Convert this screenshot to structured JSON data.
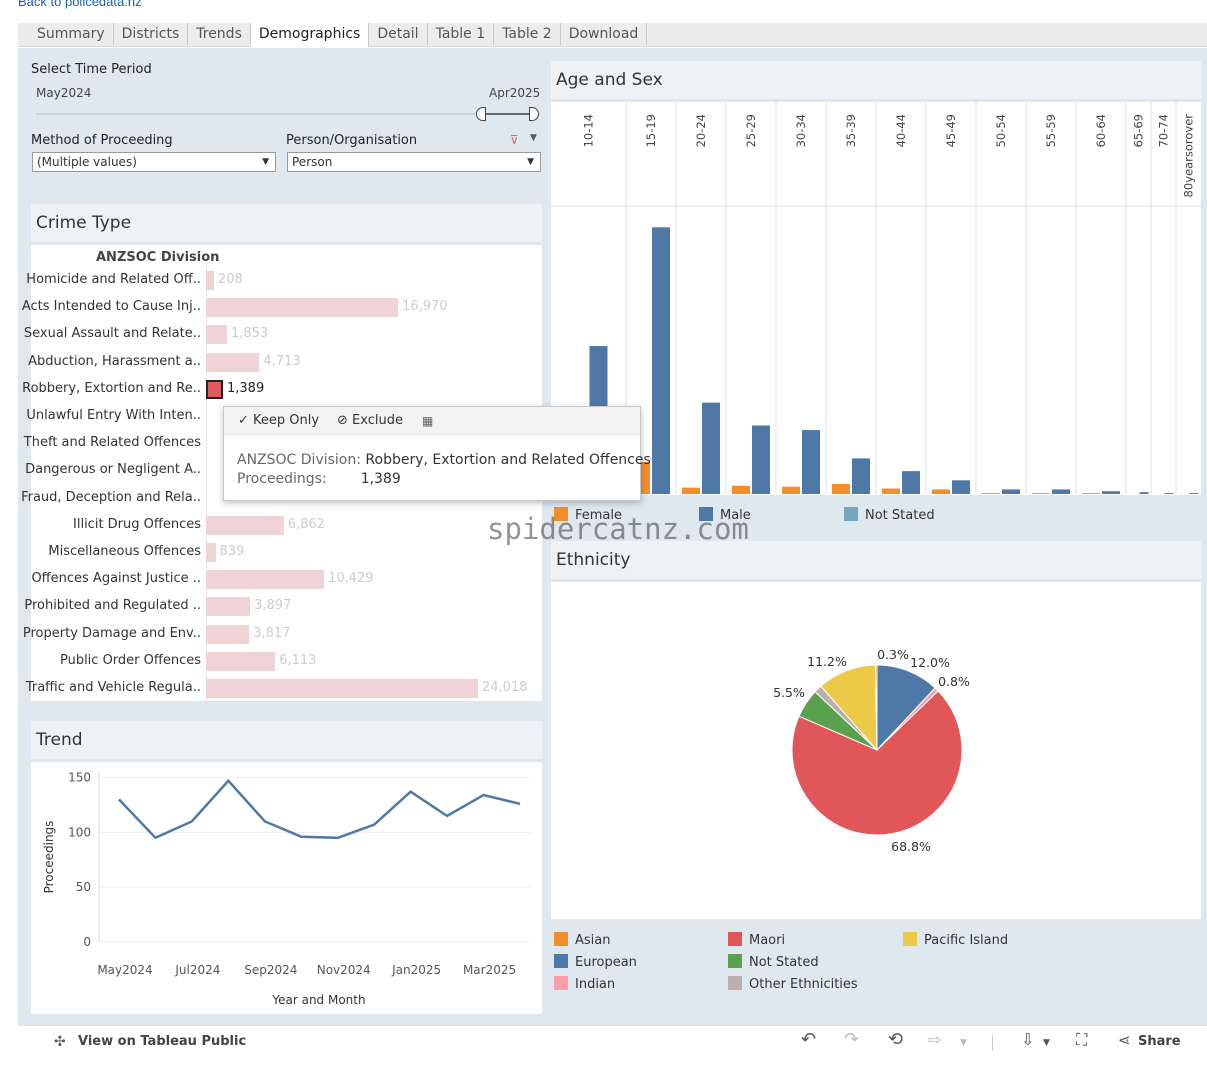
{
  "header": {
    "back_link": "Back to policedata.nz"
  },
  "tabs": [
    "Summary",
    "Districts",
    "Trends",
    "Demographics",
    "Detail",
    "Table 1",
    "Table 2",
    "Download"
  ],
  "active_tab": "Demographics",
  "filters": {
    "time_period_label": "Select Time Period",
    "time_start": "May2024",
    "time_end": "Apr2025",
    "method_label": "Method of Proceeding",
    "method_value": "(Multiple values)",
    "person_label": "Person/Organisation",
    "person_value": "Person"
  },
  "crime_type": {
    "title": "Crime Type",
    "column_header": "ANZSOC Division",
    "selected": "Robbery, Extortion and Re..",
    "rows": [
      {
        "name": "Homicide and Related Off..",
        "value": 208,
        "label": "208"
      },
      {
        "name": "Acts Intended to Cause Inj..",
        "value": 16970,
        "label": "16,970"
      },
      {
        "name": "Sexual Assault and Relate..",
        "value": 1853,
        "label": "1,853"
      },
      {
        "name": "Abduction, Harassment a..",
        "value": 4713,
        "label": "4,713"
      },
      {
        "name": "Robbery, Extortion and Re..",
        "value": 1389,
        "label": "1,389"
      },
      {
        "name": "Unlawful Entry With Inten..",
        "value": 0,
        "label": ""
      },
      {
        "name": "Theft and Related Offences",
        "value": 0,
        "label": ""
      },
      {
        "name": "Dangerous or Negligent A..",
        "value": 0,
        "label": ""
      },
      {
        "name": "Fraud, Deception and Rela..",
        "value": 0,
        "label": ""
      },
      {
        "name": "Illicit Drug Offences",
        "value": 6862,
        "label": "6,862"
      },
      {
        "name": "Miscellaneous Offences",
        "value": 839,
        "label": "839"
      },
      {
        "name": "Offences Against Justice ..",
        "value": 10429,
        "label": "10,429"
      },
      {
        "name": "Prohibited and Regulated ..",
        "value": 3897,
        "label": "3,897"
      },
      {
        "name": "Property Damage and Env..",
        "value": 3817,
        "label": "3,817"
      },
      {
        "name": "Public Order Offences",
        "value": 6113,
        "label": "6,113"
      },
      {
        "name": "Traffic and Vehicle Regula..",
        "value": 24018,
        "label": "24,018"
      }
    ]
  },
  "tooltip": {
    "keep_only": "Keep Only",
    "exclude": "Exclude",
    "division_key": "ANZSOC Division:",
    "division_value": "Robbery, Extortion and Related Offences",
    "proceedings_key": "Proceedings:",
    "proceedings_value": "1,389"
  },
  "trend": {
    "title": "Trend"
  },
  "age_sex": {
    "title": "Age and Sex"
  },
  "ethnicity": {
    "title": "Ethnicity"
  },
  "colors": {
    "female": "#f28e2b",
    "male": "#4e79a7",
    "not_stated_sex": "#76a6bd",
    "maori": "#e15759",
    "european": "#4e79a7",
    "pacific": "#edc948",
    "not_stated_eth": "#59a14f",
    "asian": "#f28e2b",
    "indian": "#ff9da7",
    "other_eth": "#bab0ac",
    "crime_bar": "#f0d3d6",
    "crime_bar_selected": "#e05a5f",
    "trend_line": "#4e79a7"
  },
  "chart_data": [
    {
      "type": "line",
      "ylabel": "Proceedings",
      "xlabel": "Year and Month",
      "x": [
        "May2024",
        "Jun2024",
        "Jul2024",
        "Aug2024",
        "Sep2024",
        "Oct2024",
        "Nov2024",
        "Dec2024",
        "Jan2025",
        "Feb2025",
        "Mar2025",
        "Apr2025"
      ],
      "x_tick_labels": [
        "May2024",
        "Jul2024",
        "Sep2024",
        "Nov2024",
        "Jan2025",
        "Mar2025"
      ],
      "values": [
        130,
        95,
        110,
        147,
        110,
        96,
        95,
        107,
        137,
        115,
        134,
        126
      ],
      "y_ticks": [
        0,
        50,
        100,
        150
      ],
      "ylim": [
        0,
        155
      ],
      "grid": true
    },
    {
      "type": "bar",
      "categories": [
        "10-14",
        "15-19",
        "20-24",
        "25-29",
        "30-34",
        "35-39",
        "40-44",
        "45-49",
        "50-54",
        "55-59",
        "60-64",
        "65-69",
        "70-74",
        "80yearsorover"
      ],
      "series": [
        {
          "name": "Female",
          "values": [
            22,
            35,
            7,
            9,
            8,
            11,
            6,
            5,
            1,
            1,
            1,
            0,
            0,
            0
          ]
        },
        {
          "name": "Male",
          "values": [
            162,
            292,
            100,
            75,
            70,
            39,
            25,
            15,
            5,
            5,
            3,
            2,
            1,
            1
          ]
        },
        {
          "name": "Not Stated",
          "values": [
            0,
            0,
            0,
            0,
            0,
            0,
            0,
            0,
            0,
            0,
            0,
            0,
            0,
            0
          ]
        }
      ],
      "legend": "bottom",
      "ylim": [
        0,
        300
      ]
    },
    {
      "type": "pie",
      "labels": [
        "European",
        "Indian",
        "Maori",
        "Not Stated",
        "Other Ethnicities",
        "Pacific Island",
        "Asian"
      ],
      "values": [
        12.0,
        0.8,
        68.8,
        5.5,
        1.5,
        11.2,
        0.3
      ],
      "value_labels": [
        "12.0%",
        "0.8%",
        "68.8%",
        "5.5%",
        "",
        "11.2%",
        "0.3%"
      ],
      "legend": "bottom"
    }
  ],
  "age_legend": [
    "Female",
    "Male",
    "Not Stated"
  ],
  "eth_legend": [
    "Asian",
    "Maori",
    "Pacific Island",
    "European",
    "Not Stated",
    "Indian",
    "Other Ethnicities"
  ],
  "footer": {
    "view_on_tableau": "View on Tableau Public",
    "share": "Share"
  },
  "watermark": "spidercatnz.com"
}
